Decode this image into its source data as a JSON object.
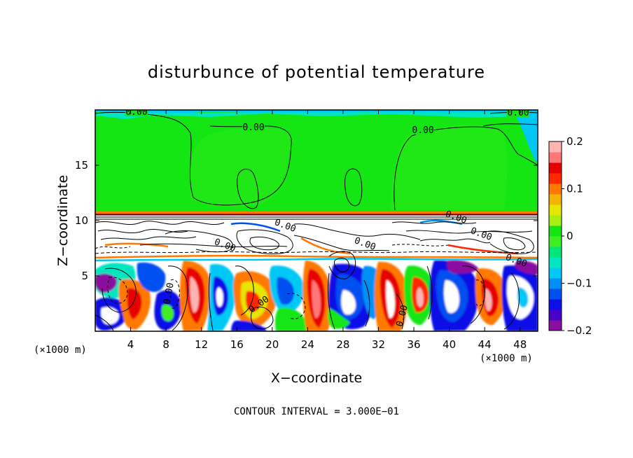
{
  "chart_data": {
    "type": "heatmap",
    "title": "disturbunce of potential temperature",
    "xlabel": "X−coordinate",
    "ylabel": "Z−coordinate",
    "x_unit": "(×1000 m)",
    "y_unit": "(×1000 m)",
    "xlim": [
      0,
      50
    ],
    "ylim": [
      0,
      20
    ],
    "x_ticks": [
      4,
      8,
      12,
      16,
      20,
      24,
      28,
      32,
      36,
      40,
      44,
      48
    ],
    "y_ticks": [
      5,
      10,
      15
    ],
    "x_tick_labels": [
      "4",
      "8",
      "12",
      "16",
      "20",
      "24",
      "28",
      "32",
      "36",
      "40",
      "44",
      "48"
    ],
    "y_tick_labels": [
      "5",
      "10",
      "15"
    ],
    "colorbar": {
      "range": [
        -0.2,
        0.2
      ],
      "ticks": [
        0.2,
        0.1,
        0,
        -0.1,
        -0.2
      ],
      "tick_labels": [
        "0.2",
        "0.1",
        "0",
        "−0.1",
        "−0.2"
      ],
      "colors": [
        "#8a0fa0",
        "#4a00c8",
        "#0a10e6",
        "#0050f0",
        "#0090f5",
        "#00c8f5",
        "#00e6c0",
        "#00e678",
        "#40ee20",
        "#14e614",
        "#a8ee10",
        "#e6e600",
        "#f5b400",
        "#ff7800",
        "#ff2800",
        "#e60000",
        "#ff7878",
        "#ffb4b4"
      ]
    },
    "contour_labels": [
      "0.00",
      "0.00",
      "0.00",
      "0.00",
      "0.00",
      "0.00",
      "0.00",
      "0.00",
      "0.00",
      "0.00",
      "0.00",
      "0.00",
      "0.00"
    ],
    "contour_interval_text": "CONTOUR INTERVAL = 3.000E−01",
    "grid": false,
    "legend": "colorbar-right"
  }
}
